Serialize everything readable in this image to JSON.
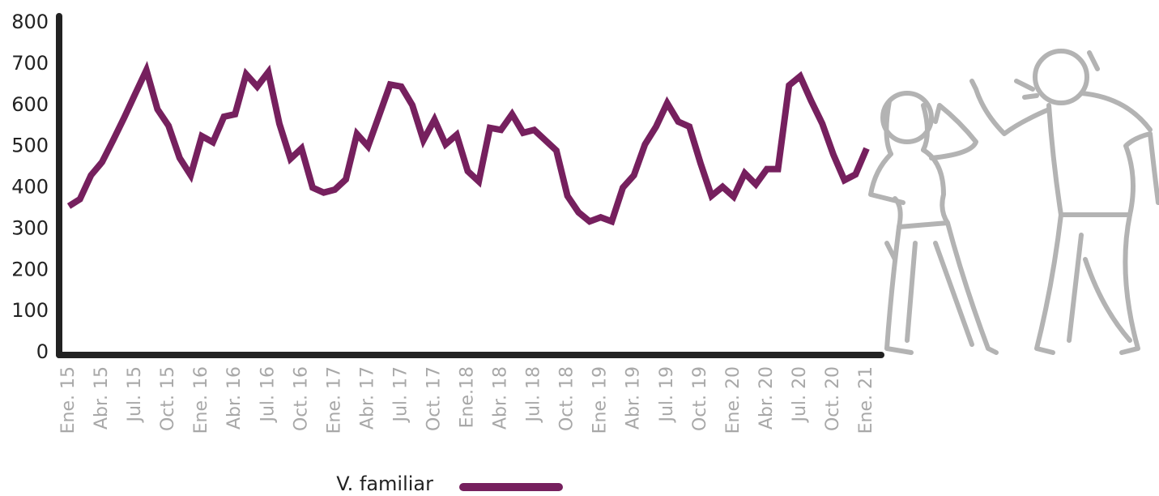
{
  "chart_data": {
    "type": "line",
    "categories": [
      "Ene. 15",
      null,
      null,
      "Abr. 15",
      null,
      null,
      "Jul. 15",
      null,
      null,
      "Oct. 15",
      null,
      null,
      "Ene. 16",
      null,
      null,
      "Abr. 16",
      null,
      null,
      "Jul. 16",
      null,
      null,
      "Oct. 16",
      null,
      null,
      "Ene. 17",
      null,
      null,
      "Abr. 17",
      null,
      null,
      "Jul. 17",
      null,
      null,
      "Oct. 17",
      null,
      null,
      "Ene.18",
      null,
      null,
      "Abr. 18",
      null,
      null,
      "Jul. 18",
      null,
      null,
      "Oct. 18",
      null,
      null,
      "Ene. 19",
      null,
      null,
      "Abr. 19",
      null,
      null,
      "Jul. 19",
      null,
      null,
      "Oct. 19",
      null,
      null,
      "Ene. 20",
      null,
      null,
      "Abr. 20",
      null,
      null,
      "Jul. 20",
      null,
      null,
      "Oct. 20",
      null,
      null,
      "Ene. 21"
    ],
    "series": [
      {
        "name": "V. familiar",
        "color": "#76205e",
        "values": [
          355,
          372,
          430,
          462,
          515,
          570,
          628,
          685,
          590,
          550,
          472,
          430,
          525,
          510,
          572,
          578,
          675,
          645,
          680,
          555,
          470,
          495,
          400,
          388,
          395,
          420,
          530,
          500,
          575,
          650,
          645,
          600,
          515,
          565,
          505,
          528,
          440,
          415,
          545,
          540,
          578,
          533,
          540,
          515,
          490,
          380,
          340,
          318,
          328,
          318,
          400,
          430,
          505,
          548,
          605,
          560,
          548,
          460,
          380,
          402,
          378,
          435,
          408,
          445,
          445,
          648,
          670,
          610,
          555,
          480,
          418,
          432,
          495
        ]
      }
    ],
    "ylim": [
      0,
      800
    ],
    "yticks": [
      0,
      100,
      200,
      300,
      400,
      500,
      600,
      700,
      800
    ],
    "grid": false
  }
}
